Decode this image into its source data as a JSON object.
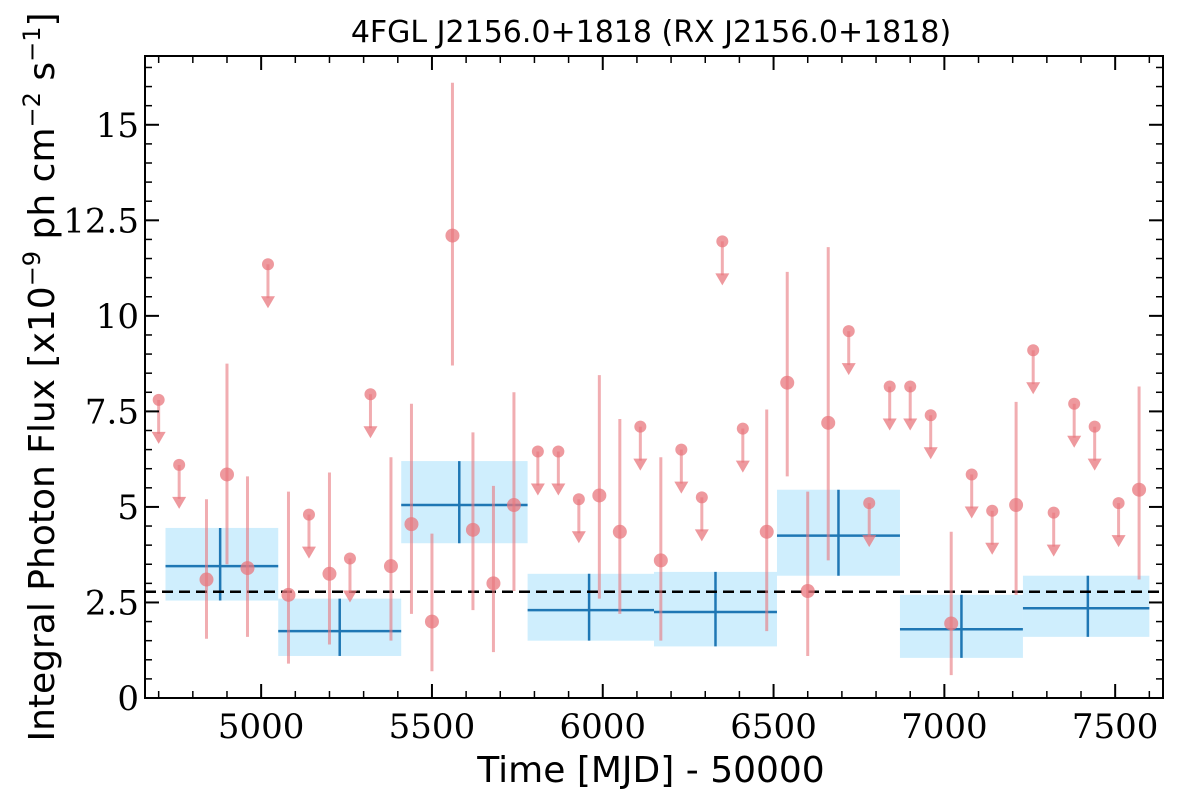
{
  "chart_data": {
    "type": "scatter",
    "title": "4FGL J2156.0+1818 (RX J2156.0+1818)",
    "xlabel": "Time [MJD] - 50000",
    "ylabel": {
      "prefix": "Integral Photon Flux [x10",
      "exp1": "−9",
      "mid": " ph cm",
      "exp2": "−2",
      "mid2": " s",
      "exp3": "−1",
      "suffix": "]"
    },
    "xlim": [
      4660,
      7640
    ],
    "ylim": [
      0,
      16.8
    ],
    "x_ticks": [
      5000,
      5500,
      6000,
      6500,
      7000,
      7500
    ],
    "x_tick_labels": [
      "5000",
      "5500",
      "6000",
      "6500",
      "7000",
      "7500"
    ],
    "y_ticks": [
      0,
      2.5,
      5,
      7.5,
      10,
      12.5,
      15
    ],
    "y_tick_labels": [
      "0",
      "2.5",
      "5",
      "7.5",
      "10",
      "12.5",
      "15"
    ],
    "average_flux": 2.78,
    "colors": {
      "points": "#e8777e",
      "bins": "#1f77b4",
      "bin_fill": "#cfeefd",
      "average": "#000000"
    },
    "detections": [
      {
        "x": 4840,
        "y": 3.1,
        "lo": 1.55,
        "hi": 5.2
      },
      {
        "x": 4900,
        "y": 5.85,
        "lo": 3.5,
        "hi": 8.75
      },
      {
        "x": 4960,
        "y": 3.4,
        "lo": 1.6,
        "hi": 5.8
      },
      {
        "x": 5080,
        "y": 2.7,
        "lo": 0.9,
        "hi": 5.4
      },
      {
        "x": 5200,
        "y": 3.25,
        "lo": 1.4,
        "hi": 5.9
      },
      {
        "x": 5380,
        "y": 3.45,
        "lo": 1.5,
        "hi": 6.3
      },
      {
        "x": 5440,
        "y": 4.55,
        "lo": 2.2,
        "hi": 7.7
      },
      {
        "x": 5500,
        "y": 2.0,
        "lo": 0.7,
        "hi": 4.3
      },
      {
        "x": 5560,
        "y": 12.1,
        "lo": 8.7,
        "hi": 16.1
      },
      {
        "x": 5620,
        "y": 4.4,
        "lo": 2.3,
        "hi": 6.95
      },
      {
        "x": 5680,
        "y": 3.0,
        "lo": 1.2,
        "hi": 5.55
      },
      {
        "x": 5740,
        "y": 5.05,
        "lo": 2.8,
        "hi": 8.0
      },
      {
        "x": 5990,
        "y": 5.3,
        "lo": 2.6,
        "hi": 8.45
      },
      {
        "x": 6050,
        "y": 4.35,
        "lo": 2.2,
        "hi": 7.3
      },
      {
        "x": 6170,
        "y": 3.6,
        "lo": 1.5,
        "hi": 6.3
      },
      {
        "x": 6480,
        "y": 4.35,
        "lo": 1.75,
        "hi": 7.55
      },
      {
        "x": 6540,
        "y": 8.25,
        "lo": 5.8,
        "hi": 11.15
      },
      {
        "x": 6600,
        "y": 2.8,
        "lo": 1.1,
        "hi": 5.4
      },
      {
        "x": 6660,
        "y": 7.2,
        "lo": 3.6,
        "hi": 11.8
      },
      {
        "x": 7020,
        "y": 1.95,
        "lo": 0.6,
        "hi": 4.35
      },
      {
        "x": 7210,
        "y": 5.05,
        "lo": 2.7,
        "hi": 7.75
      },
      {
        "x": 7570,
        "y": 5.45,
        "lo": 3.1,
        "hi": 8.15
      }
    ],
    "upper_limits": [
      {
        "x": 4700,
        "y": 7.8
      },
      {
        "x": 4760,
        "y": 6.1
      },
      {
        "x": 5020,
        "y": 11.35
      },
      {
        "x": 5140,
        "y": 4.8
      },
      {
        "x": 5260,
        "y": 3.65
      },
      {
        "x": 5320,
        "y": 7.95
      },
      {
        "x": 5810,
        "y": 6.45
      },
      {
        "x": 5870,
        "y": 6.45
      },
      {
        "x": 5930,
        "y": 5.2
      },
      {
        "x": 6110,
        "y": 7.1
      },
      {
        "x": 6230,
        "y": 6.5
      },
      {
        "x": 6290,
        "y": 5.25
      },
      {
        "x": 6350,
        "y": 11.95
      },
      {
        "x": 6410,
        "y": 7.05
      },
      {
        "x": 6720,
        "y": 9.6
      },
      {
        "x": 6780,
        "y": 5.1
      },
      {
        "x": 6840,
        "y": 8.15
      },
      {
        "x": 6900,
        "y": 8.15
      },
      {
        "x": 6960,
        "y": 7.4
      },
      {
        "x": 7080,
        "y": 5.85
      },
      {
        "x": 7140,
        "y": 4.9
      },
      {
        "x": 7260,
        "y": 9.1
      },
      {
        "x": 7320,
        "y": 4.85
      },
      {
        "x": 7380,
        "y": 7.7
      },
      {
        "x": 7440,
        "y": 7.1
      },
      {
        "x": 7510,
        "y": 5.1
      }
    ],
    "bins": [
      {
        "x0": 4720,
        "x1": 5050,
        "xc": 4880,
        "y": 3.45,
        "ylo": 2.55,
        "yhi": 4.45
      },
      {
        "x0": 5050,
        "x1": 5410,
        "xc": 5230,
        "y": 1.75,
        "ylo": 1.1,
        "yhi": 2.6
      },
      {
        "x0": 5410,
        "x1": 5780,
        "xc": 5580,
        "y": 5.05,
        "ylo": 4.05,
        "yhi": 6.2
      },
      {
        "x0": 5780,
        "x1": 6150,
        "xc": 5960,
        "y": 2.3,
        "ylo": 1.5,
        "yhi": 3.25
      },
      {
        "x0": 6150,
        "x1": 6510,
        "xc": 6330,
        "y": 2.25,
        "ylo": 1.35,
        "yhi": 3.3
      },
      {
        "x0": 6510,
        "x1": 6870,
        "xc": 6690,
        "y": 4.25,
        "ylo": 3.2,
        "yhi": 5.45
      },
      {
        "x0": 6870,
        "x1": 7230,
        "xc": 7050,
        "y": 1.8,
        "ylo": 1.05,
        "yhi": 2.7
      },
      {
        "x0": 7230,
        "x1": 7600,
        "xc": 7420,
        "y": 2.35,
        "ylo": 1.6,
        "yhi": 3.2
      }
    ]
  }
}
